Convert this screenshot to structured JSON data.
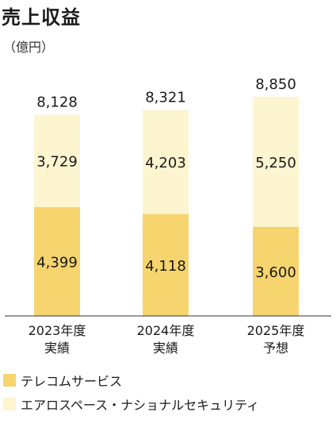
{
  "title": "売上収益",
  "unit": "（億円）",
  "chart_data": {
    "type": "bar",
    "stacked": true,
    "categories": [
      [
        "2023年度",
        "実績"
      ],
      [
        "2024年度",
        "実績"
      ],
      [
        "2025年度",
        "予想"
      ]
    ],
    "totals": [
      "8,128",
      "8,321",
      "8,850"
    ],
    "series": [
      {
        "name": "テレコムサービス",
        "color": "#f6d46e",
        "values": [
          4399,
          4118,
          3600
        ],
        "labels": [
          "4,399",
          "4,118",
          "3,600"
        ]
      },
      {
        "name": "エアロスペース・ナショナルセキュリティ",
        "color": "#fdf4d0",
        "values": [
          3729,
          4203,
          5250
        ],
        "labels": [
          "3,729",
          "4,203",
          "5,250"
        ]
      }
    ]
  }
}
